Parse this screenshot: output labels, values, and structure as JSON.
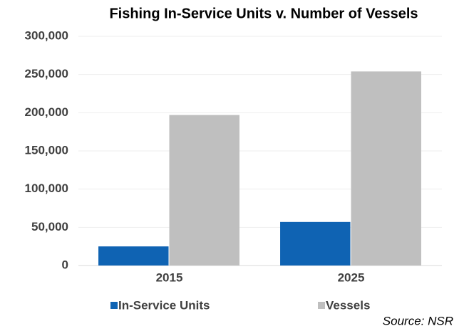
{
  "chart_data": {
    "type": "bar",
    "title": "Fishing In-Service Units v. Number of Vessels",
    "categories": [
      "2015",
      "2025"
    ],
    "series": [
      {
        "name": "In-Service Units",
        "color": "#0f63b3",
        "values": [
          25000,
          57000
        ]
      },
      {
        "name": "Vessels",
        "color": "#bfbfbf",
        "values": [
          197000,
          254000
        ]
      }
    ],
    "ylim": [
      0,
      300000
    ],
    "yticks": [
      0,
      {
        "value": 50000,
        "label": "50,000"
      },
      {
        "value": 100000,
        "label": "100,000"
      },
      {
        "value": 150000,
        "label": "150,000"
      },
      {
        "value": 200000,
        "label": "200,000"
      },
      {
        "value": 250000,
        "label": "250,000"
      },
      {
        "value": 300000,
        "label": "300,000"
      }
    ],
    "grid": true,
    "legend": "bottom",
    "annotation": "Source: NSR"
  }
}
